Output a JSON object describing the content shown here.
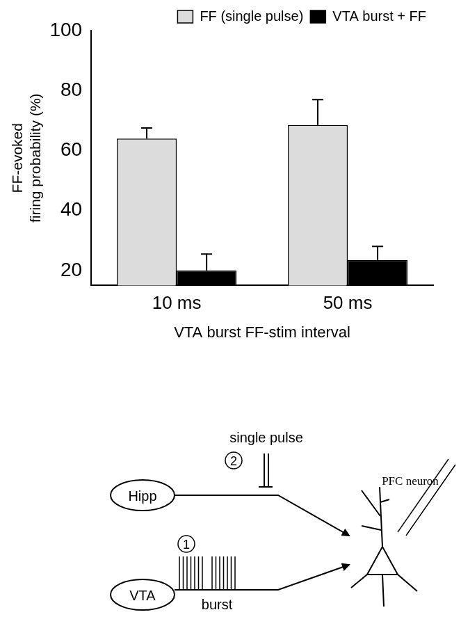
{
  "chart_data": {
    "type": "bar",
    "categories": [
      "10 ms",
      "50 ms"
    ],
    "series": [
      {
        "name": "FF (single pulse)",
        "color": "#dcdcdc",
        "values": [
          64,
          68.5
        ],
        "errors": [
          3.5,
          8.5
        ]
      },
      {
        "name": "VTA burst + FF",
        "color": "#000000",
        "values": [
          20,
          23.5
        ],
        "errors": [
          5.5,
          4.5
        ]
      }
    ],
    "x_label": "VTA burst FF-stim interval",
    "y_label": [
      "FF-evoked",
      "firing probability (%)"
    ],
    "ylim": [
      15,
      100
    ],
    "yticks": [
      20,
      40,
      60,
      80,
      100
    ],
    "grid": false,
    "legend": "top-right"
  },
  "diagram": {
    "inputs": [
      {
        "label": "Hipp",
        "stim_label": "single pulse",
        "step": "2"
      },
      {
        "label": "VTA",
        "stim_label": "burst",
        "step": "1"
      }
    ],
    "target": "PFC neuron"
  }
}
